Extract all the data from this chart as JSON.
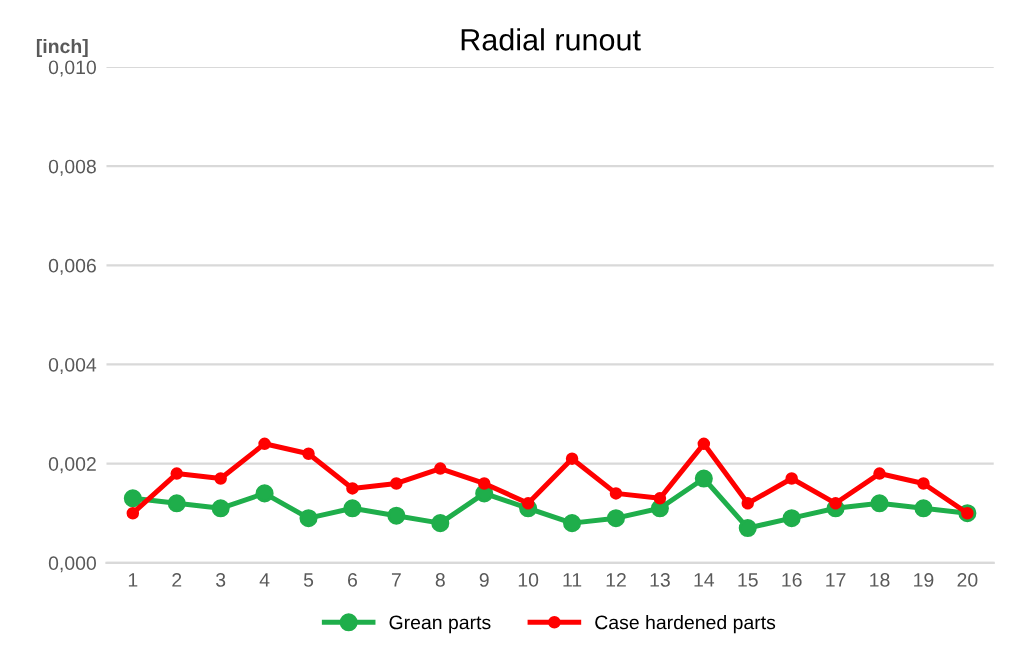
{
  "chart_data": {
    "type": "line",
    "title": "Radial runout",
    "ylabel": "[inch]",
    "categories": [
      "1",
      "2",
      "3",
      "4",
      "5",
      "6",
      "7",
      "8",
      "9",
      "10",
      "11",
      "12",
      "13",
      "14",
      "15",
      "16",
      "17",
      "18",
      "19",
      "20"
    ],
    "series": [
      {
        "name": "Grean parts",
        "color": "#1fae4b",
        "values": [
          0.0013,
          0.0012,
          0.0011,
          0.0014,
          0.0009,
          0.0011,
          0.00095,
          0.0008,
          0.0014,
          0.0011,
          0.0008,
          0.0009,
          0.0011,
          0.0017,
          0.0007,
          0.0009,
          0.0011,
          0.0012,
          0.0011,
          0.001
        ]
      },
      {
        "name": "Case hardened parts",
        "color": "#ff0000",
        "values": [
          0.001,
          0.0018,
          0.0017,
          0.0024,
          0.0022,
          0.0015,
          0.0016,
          0.0019,
          0.0016,
          0.0012,
          0.0021,
          0.0014,
          0.0013,
          0.0024,
          0.0012,
          0.0017,
          0.0012,
          0.0018,
          0.0016,
          0.001
        ]
      }
    ],
    "ylim": [
      0,
      0.01
    ],
    "yticks": [
      {
        "value": 0,
        "label": "0,000"
      },
      {
        "value": 0.002,
        "label": "0,002"
      },
      {
        "value": 0.004,
        "label": "0,004"
      },
      {
        "value": 0.006,
        "label": "0,006"
      },
      {
        "value": 0.008,
        "label": "0,008"
      },
      {
        "value": 0.01,
        "label": "0,010"
      }
    ],
    "grid": "y",
    "legend": "bottom",
    "marker": "circle",
    "line_style": "solid"
  }
}
